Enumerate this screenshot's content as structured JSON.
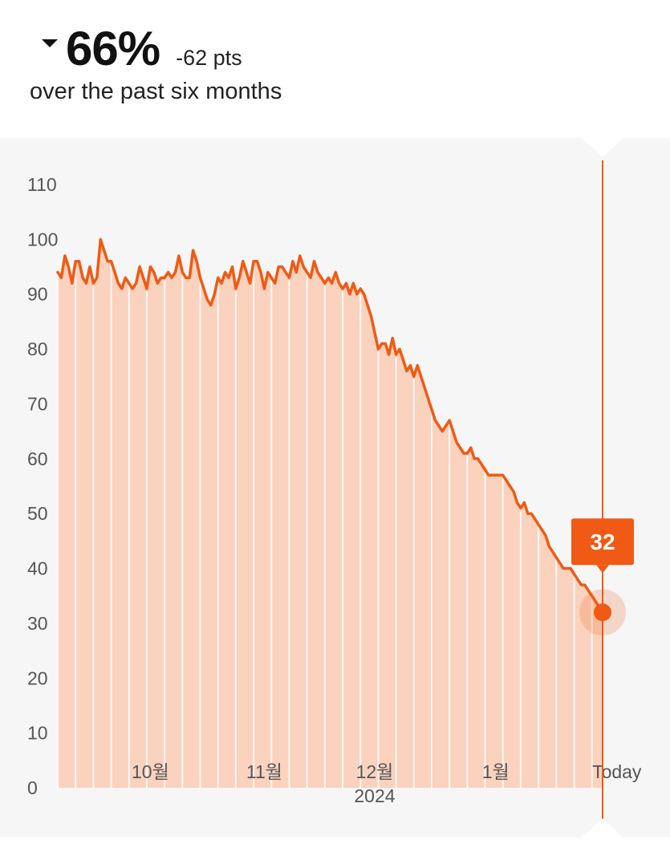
{
  "header": {
    "change_percent": "66%",
    "change_points": "-62 pts",
    "period": "over the past six months",
    "direction": "down"
  },
  "colors": {
    "line": "#f05a14",
    "fill": "#fbd2be",
    "badge": "#f05a14",
    "panel_bg": "#f6f6f6"
  },
  "chart_data": {
    "type": "area",
    "title": "",
    "xlabel": "",
    "ylabel": "",
    "ylim": [
      0,
      110
    ],
    "yticks": [
      "0",
      "10",
      "20",
      "30",
      "40",
      "50",
      "60",
      "70",
      "80",
      "90",
      "100",
      "110"
    ],
    "xtick_labels": [
      {
        "label": "10월",
        "day": 26
      },
      {
        "label": "11월",
        "day": 58
      },
      {
        "label": "12월",
        "day": 89
      },
      {
        "label": "1월",
        "day": 123
      },
      {
        "label": "Today",
        "day": 157
      }
    ],
    "year_label": {
      "label": "2024",
      "day": 89
    },
    "current_value": "32",
    "series": [
      {
        "values": [
          94,
          93,
          97,
          95,
          92,
          96,
          96,
          93,
          92,
          95,
          92,
          93,
          100,
          98,
          96,
          96,
          94,
          92,
          91,
          93,
          92,
          91,
          92,
          95,
          93,
          91,
          95,
          94,
          92,
          93,
          93,
          94,
          93,
          94,
          97,
          94,
          93,
          93,
          98,
          96,
          93,
          91,
          89,
          88,
          90,
          93,
          92,
          94,
          93,
          95,
          91,
          93,
          96,
          94,
          92,
          96,
          96,
          94,
          91,
          94,
          93,
          92,
          95,
          95,
          94,
          93,
          96,
          94,
          97,
          95,
          94,
          93,
          96,
          94,
          93,
          92,
          93,
          92,
          94,
          92,
          91,
          92,
          90,
          92,
          90,
          91,
          90,
          88,
          86,
          83,
          80,
          81,
          81,
          79,
          82,
          79,
          80,
          78,
          76,
          77,
          75,
          77,
          75,
          73,
          71,
          69,
          67,
          66,
          65,
          66,
          67,
          65,
          63,
          62,
          61,
          61,
          62,
          60,
          60,
          59,
          58,
          57,
          57,
          57,
          57,
          57,
          56,
          55,
          54,
          52,
          51,
          52,
          50,
          50,
          49,
          48,
          47,
          46,
          44,
          43,
          42,
          41,
          40,
          40,
          40,
          39,
          38,
          37,
          37,
          36,
          35,
          34,
          33,
          32
        ]
      }
    ]
  }
}
